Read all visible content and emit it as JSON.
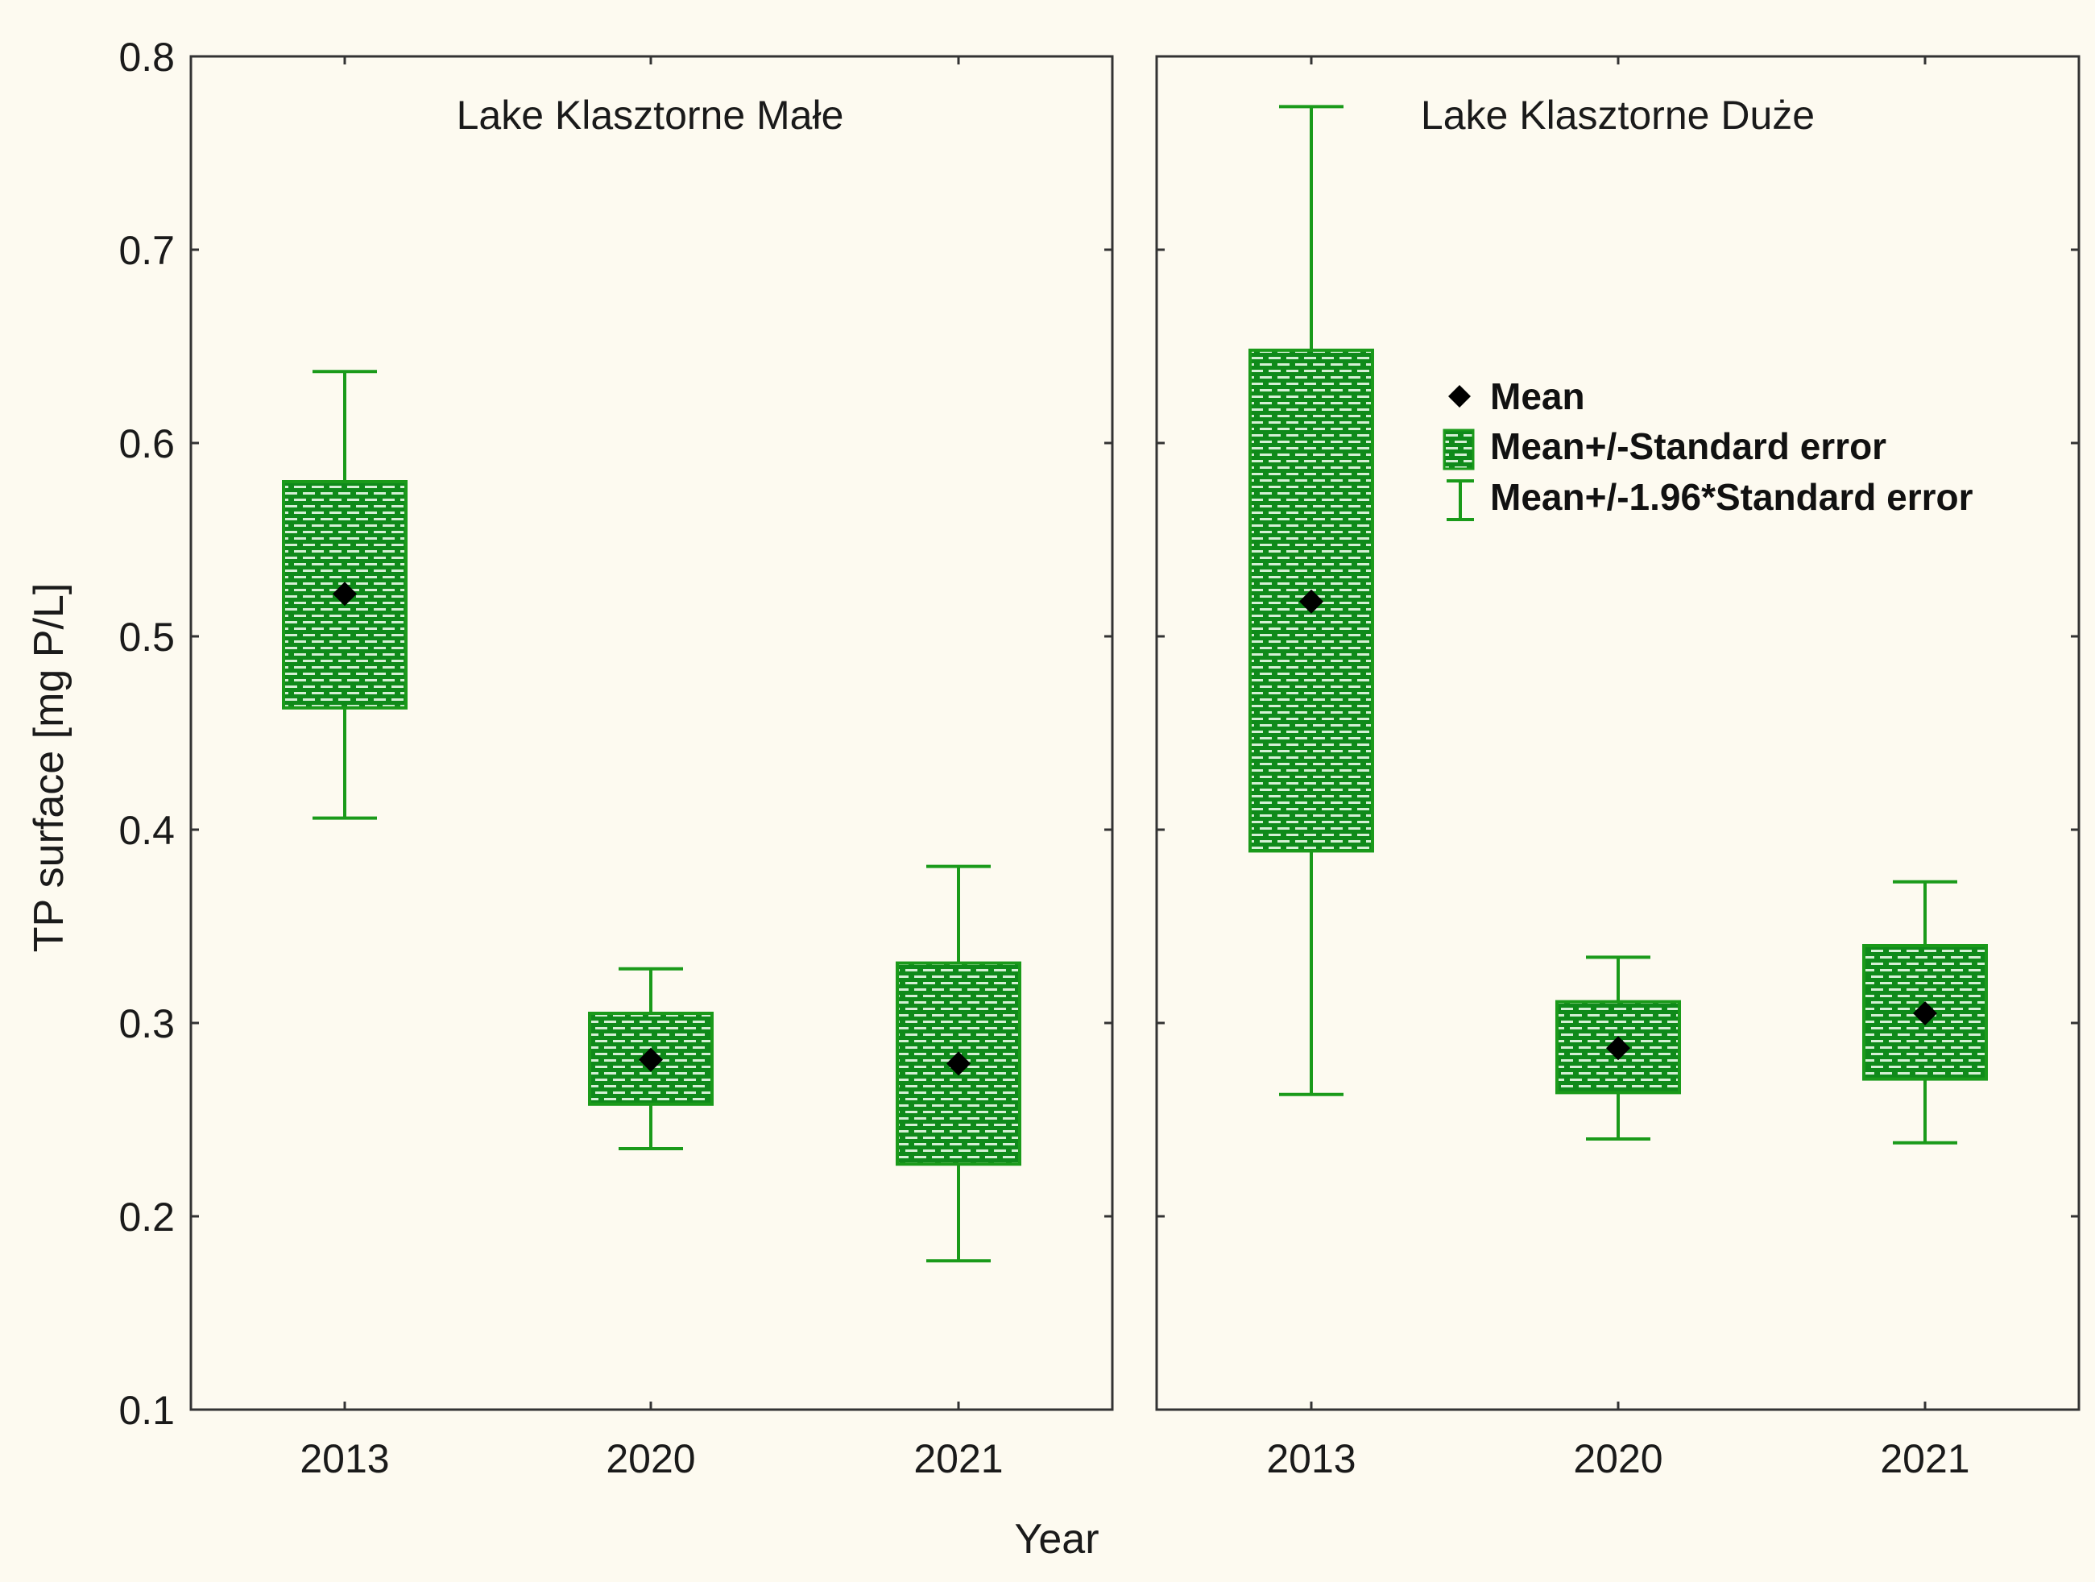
{
  "colors": {
    "background": "#fdfaf0",
    "green": "#1a9a1a",
    "pattern_light": "#cfeecf",
    "axis": "#333333",
    "marker": "#000000"
  },
  "chart_data": {
    "type": "boxplot",
    "title": "",
    "xlabel": "Year",
    "ylabel": "TP surface [mg P/L]",
    "ylim": [
      0.1,
      0.8
    ],
    "yticks": [
      "0.1",
      "0.2",
      "0.3",
      "0.4",
      "0.5",
      "0.6",
      "0.7",
      "0.8"
    ],
    "categories": [
      "2013",
      "2020",
      "2021"
    ],
    "legend": {
      "position": "top-right",
      "mean": "Mean",
      "se": "Mean+/-Standard error",
      "ci": "Mean+/-1.96*Standard error"
    },
    "panels": [
      {
        "title": "Lake Klasztorne Małe",
        "groups": [
          {
            "year": "2013",
            "mean": 0.522,
            "se_low": 0.463,
            "se_high": 0.58,
            "ci_low": 0.406,
            "ci_high": 0.637
          },
          {
            "year": "2020",
            "mean": 0.281,
            "se_low": 0.258,
            "se_high": 0.305,
            "ci_low": 0.235,
            "ci_high": 0.328
          },
          {
            "year": "2021",
            "mean": 0.279,
            "se_low": 0.227,
            "se_high": 0.331,
            "ci_low": 0.177,
            "ci_high": 0.381
          }
        ]
      },
      {
        "title": "Lake Klasztorne Duże",
        "groups": [
          {
            "year": "2013",
            "mean": 0.518,
            "se_low": 0.389,
            "se_high": 0.648,
            "ci_low": 0.263,
            "ci_high": 0.774
          },
          {
            "year": "2020",
            "mean": 0.287,
            "se_low": 0.264,
            "se_high": 0.311,
            "ci_low": 0.24,
            "ci_high": 0.334
          },
          {
            "year": "2021",
            "mean": 0.305,
            "se_low": 0.271,
            "se_high": 0.34,
            "ci_low": 0.238,
            "ci_high": 0.373
          }
        ]
      }
    ]
  }
}
